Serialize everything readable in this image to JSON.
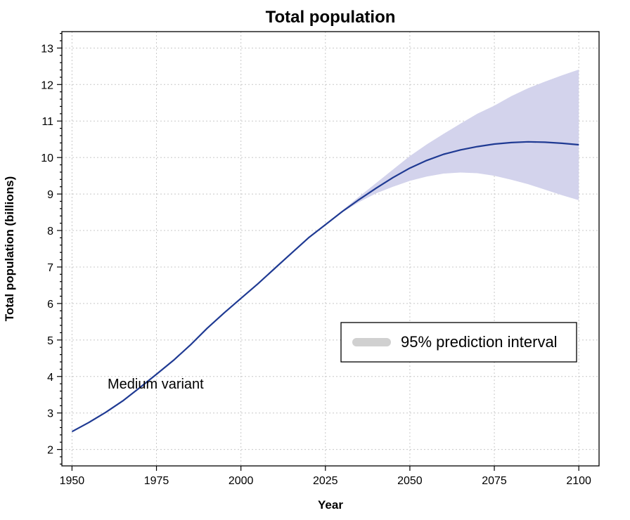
{
  "chart_data": {
    "type": "line",
    "title": "Total population",
    "xlabel": "Year",
    "ylabel": "Total population (billions)",
    "xlim": [
      1947,
      2106
    ],
    "ylim": [
      1.55,
      13.45
    ],
    "xticks": [
      1950,
      1975,
      2000,
      2025,
      2050,
      2075,
      2100
    ],
    "yticks": [
      2,
      3,
      4,
      5,
      6,
      7,
      8,
      9,
      10,
      11,
      12,
      13
    ],
    "grid": true,
    "colors": {
      "line": "#1f3a93",
      "band": "#d3d3ec",
      "legend_swatch": "#d0d0d0"
    },
    "series": [
      {
        "name": "Medium variant",
        "x": [
          1950,
          1955,
          1960,
          1965,
          1970,
          1975,
          1980,
          1985,
          1990,
          1995,
          2000,
          2005,
          2010,
          2015,
          2020,
          2025,
          2030,
          2035,
          2040,
          2045,
          2050,
          2055,
          2060,
          2065,
          2070,
          2075,
          2080,
          2085,
          2090,
          2095,
          2100
        ],
        "y": [
          2.49,
          2.74,
          3.02,
          3.33,
          3.69,
          4.06,
          4.44,
          4.86,
          5.32,
          5.74,
          6.14,
          6.54,
          6.96,
          7.38,
          7.8,
          8.16,
          8.52,
          8.85,
          9.16,
          9.45,
          9.71,
          9.92,
          10.09,
          10.21,
          10.3,
          10.37,
          10.41,
          10.43,
          10.42,
          10.39,
          10.35
        ]
      }
    ],
    "interval": {
      "name": "95% prediction interval",
      "x": [
        2025,
        2030,
        2035,
        2040,
        2045,
        2050,
        2055,
        2060,
        2065,
        2070,
        2075,
        2080,
        2085,
        2090,
        2095,
        2100
      ],
      "lower": [
        8.16,
        8.5,
        8.78,
        9.02,
        9.2,
        9.36,
        9.48,
        9.56,
        9.59,
        9.57,
        9.5,
        9.39,
        9.27,
        9.12,
        8.97,
        8.83
      ],
      "upper": [
        8.16,
        8.55,
        8.93,
        9.3,
        9.67,
        10.04,
        10.36,
        10.65,
        10.93,
        11.2,
        11.42,
        11.68,
        11.9,
        12.08,
        12.25,
        12.41
      ]
    },
    "annotations": [
      "Medium variant"
    ],
    "legend": {
      "position": "center-right",
      "label": "95% prediction interval"
    }
  }
}
